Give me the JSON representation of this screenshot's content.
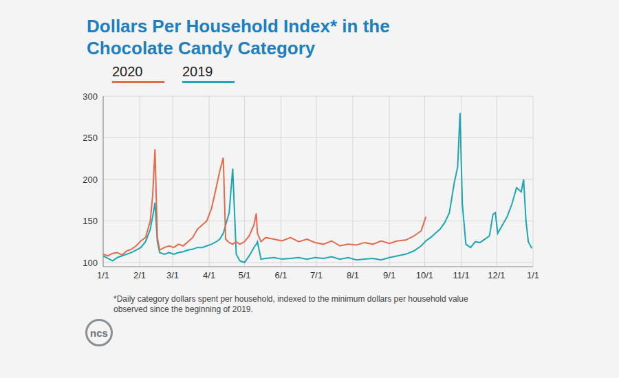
{
  "chart_data": {
    "type": "line",
    "title": "Dollars Per Household Index* in the Chocolate Candy Category",
    "annotations": [
      "*Daily category dollars spent per household, indexed to the minimum dollars per household value observed since the beginning of 2019."
    ],
    "source": "ncs",
    "x": [
      0,
      4,
      8,
      12,
      16,
      20,
      24,
      28,
      32,
      36,
      40,
      42,
      44,
      46,
      48,
      52,
      56,
      60,
      64,
      68,
      72,
      76,
      80,
      84,
      88,
      92,
      96,
      99,
      102,
      104,
      107,
      110,
      113,
      116,
      120,
      124,
      128,
      130,
      131,
      134,
      138,
      145,
      152,
      159,
      166,
      173,
      180,
      187,
      194,
      201,
      208,
      215,
      222,
      229,
      236,
      243,
      250,
      257,
      264,
      270,
      274,
      278,
      282,
      286,
      290,
      294,
      298,
      301,
      303,
      305,
      308,
      312,
      316,
      320,
      324,
      328,
      331,
      333,
      335,
      339,
      343,
      347,
      351,
      355,
      357,
      359,
      361,
      364
    ],
    "series": [
      {
        "name": "2020",
        "color": "#e4694b",
        "values": [
          110,
          108,
          111,
          112,
          109,
          114,
          116,
          120,
          126,
          130,
          150,
          180,
          236,
          130,
          115,
          118,
          120,
          118,
          122,
          120,
          125,
          130,
          140,
          145,
          150,
          165,
          190,
          210,
          226,
          128,
          124,
          122,
          125,
          122,
          125,
          132,
          145,
          159,
          135,
          125,
          130,
          128,
          126,
          130,
          125,
          128,
          124,
          122,
          126,
          120,
          122,
          121,
          124,
          122,
          126,
          123,
          126,
          127,
          132,
          138,
          155,
          null,
          null,
          null,
          null,
          null,
          null,
          null,
          null,
          null,
          null,
          null,
          null,
          null,
          null,
          null,
          null,
          null,
          null,
          null,
          null,
          null,
          null,
          null,
          null,
          null,
          null,
          null
        ]
      },
      {
        "name": "2019",
        "color": "#1aa6b3",
        "values": [
          108,
          105,
          102,
          106,
          108,
          110,
          112,
          115,
          118,
          125,
          140,
          155,
          172,
          125,
          112,
          110,
          112,
          110,
          112,
          113,
          115,
          116,
          118,
          118,
          120,
          122,
          125,
          128,
          135,
          145,
          160,
          213,
          110,
          102,
          100,
          108,
          118,
          122,
          125,
          104,
          105,
          106,
          104,
          105,
          106,
          104,
          106,
          105,
          107,
          104,
          106,
          103,
          104,
          105,
          103,
          106,
          108,
          110,
          114,
          120,
          126,
          130,
          135,
          140,
          148,
          160,
          195,
          215,
          280,
          170,
          122,
          118,
          125,
          124,
          128,
          132,
          158,
          160,
          135,
          145,
          155,
          170,
          190,
          185,
          200,
          150,
          125,
          117
        ]
      }
    ],
    "xlim": [
      0,
      365
    ],
    "xticks": [
      {
        "value": 0,
        "label": "1/1"
      },
      {
        "value": 31,
        "label": "2/1"
      },
      {
        "value": 59,
        "label": "3/1"
      },
      {
        "value": 90,
        "label": "4/1"
      },
      {
        "value": 120,
        "label": "5/1"
      },
      {
        "value": 151,
        "label": "6/1"
      },
      {
        "value": 181,
        "label": "7/1"
      },
      {
        "value": 212,
        "label": "8/1"
      },
      {
        "value": 243,
        "label": "9/1"
      },
      {
        "value": 273,
        "label": "10/1"
      },
      {
        "value": 304,
        "label": "11/1"
      },
      {
        "value": 334,
        "label": "12/1"
      },
      {
        "value": 365,
        "label": "1/1"
      }
    ],
    "ylim": [
      95,
      300
    ],
    "yticks": [
      100,
      150,
      200,
      250,
      300
    ],
    "grid": true,
    "legend": "top-left"
  }
}
